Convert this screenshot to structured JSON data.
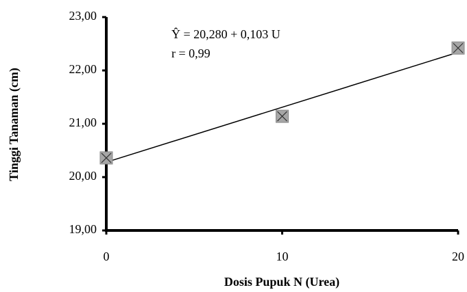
{
  "chart_data": {
    "type": "scatter",
    "xlabel": "Dosis Pupuk N (Urea)",
    "ylabel": "Tinggi Tanaman (cm)",
    "annotations": [
      "Ŷ  = 20,280  + 0,103 U",
      "r  = 0,99"
    ],
    "x": [
      0,
      10,
      20
    ],
    "values": [
      20.36,
      21.14,
      22.42
    ],
    "color": "#a6a6a6",
    "trendline": {
      "x": [
        0,
        20
      ],
      "values": [
        20.28,
        22.34
      ],
      "color": "#000000"
    },
    "xlim": [
      0,
      20
    ],
    "xticks": [
      0,
      10,
      20
    ],
    "ylim": [
      19,
      23
    ],
    "yticks": [
      {
        "value": 19,
        "label": "19,00"
      },
      {
        "value": 20,
        "label": "20,00"
      },
      {
        "value": 21,
        "label": "21,00"
      },
      {
        "value": 22,
        "label": "22,00"
      },
      {
        "value": 23,
        "label": "23,00"
      }
    ],
    "grid": false
  }
}
